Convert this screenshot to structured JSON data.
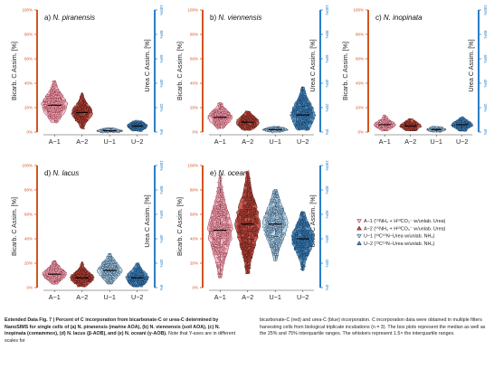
{
  "colors": {
    "bicarb_axis": "#d2541f",
    "urea_axis": "#2a7fc6",
    "A1_fill": "#f5b8c4",
    "A1_stroke": "#8e2a3c",
    "A2_fill": "#c7453a",
    "A2_stroke": "#3d1410",
    "U1_fill": "#b9d6ea",
    "U1_stroke": "#1f3f5c",
    "U2_fill": "#3f86c2",
    "U2_stroke": "#13314f"
  },
  "legend": {
    "items": [
      {
        "key": "A1",
        "symbol": "▽",
        "label": "A−1 (¹⁵NH₄ + H¹³CO₃⁻ w/unlab. Urea)"
      },
      {
        "key": "A2",
        "symbol": "▲",
        "label": "A−2 (¹⁵NH₄ + H¹³CO₃⁻ w/unlab. Urea)"
      },
      {
        "key": "U1",
        "symbol": "▽",
        "label": "U−1 (¹³C¹⁵N−Urea w/unlab. NH₄)"
      },
      {
        "key": "U2",
        "symbol": "▲",
        "label": "U−2 (¹³C¹⁵N−Urea w/unlab. NH₄)"
      }
    ]
  },
  "caption": {
    "lead": "Extended Data Fig. 7 | Percent of C incorporation from bicarbonate-C or urea-C determined by NanoSIMS for single cells of (a) N. piranensis (marine AOA), (b) N. viennensis (soil AOA), (c) N. inopinata (comammox), (d) N. lacus (β-AOB), and (e) N. oceani (γ-AOB).",
    "rest": " Note that Y-axes are in different scales for",
    "right": "bicarbonate-C (red) and urea-C (blue) incorporation. C incorporation data were obtained in multiple filters harvesting cells from biological triplicate incubations (n = 3). The box plots represent the median as well as the 25% and 75% interquartile ranges. The whiskers represent 1.5× the interquartile ranges."
  },
  "chart_data": [
    {
      "type": "violin",
      "panel": "a",
      "title": "a) N. piranensis",
      "categories": [
        "A−1",
        "A−2",
        "U−1",
        "U−2"
      ],
      "ylabel_left": "Bicarb. C Assim. [%]",
      "ylabel_right": "Urea C Assim. [%]",
      "yticks_left": [
        "0%",
        "20%",
        "40%",
        "60%",
        "80%",
        "100%"
      ],
      "ylim_left": [
        0,
        100
      ],
      "yticks_right": [
        "0%",
        "20%",
        "40%",
        "60%",
        "80%",
        "100%"
      ],
      "ylim_right": [
        0,
        100
      ],
      "series": [
        {
          "key": "A1",
          "axis": "left",
          "median": 22,
          "q1": 17,
          "q3": 28,
          "min": 8,
          "max": 42,
          "width": 0.95,
          "n": 260
        },
        {
          "key": "A2",
          "axis": "left",
          "median": 16,
          "q1": 12,
          "q3": 20,
          "min": 3,
          "max": 32,
          "width": 0.8,
          "n": 170
        },
        {
          "key": "U1",
          "axis": "right",
          "median": 1,
          "q1": 0.5,
          "q3": 2,
          "min": 0,
          "max": 3,
          "width": 0.95,
          "n": 80
        },
        {
          "key": "U2",
          "axis": "right",
          "median": 5,
          "q1": 3,
          "q3": 7,
          "min": 1,
          "max": 9,
          "width": 0.75,
          "n": 110
        }
      ]
    },
    {
      "type": "violin",
      "panel": "b",
      "title": "b) N. viennensis",
      "categories": [
        "A−1",
        "A−2",
        "U−1",
        "U−2"
      ],
      "ylabel_left": "Bicarb. C Assim. [%]",
      "ylabel_right": "Urea C Assim. [%]",
      "yticks_left": [
        "0%",
        "20%",
        "40%",
        "60%",
        "80%",
        "100%"
      ],
      "ylim_left": [
        0,
        100
      ],
      "yticks_right": [
        "0%",
        "20%",
        "40%",
        "60%",
        "80%",
        "100%"
      ],
      "ylim_right": [
        0,
        100
      ],
      "series": [
        {
          "key": "A1",
          "axis": "left",
          "median": 12,
          "q1": 9,
          "q3": 16,
          "min": 3,
          "max": 24,
          "width": 0.9,
          "n": 170
        },
        {
          "key": "A2",
          "axis": "left",
          "median": 8,
          "q1": 5,
          "q3": 11,
          "min": 2,
          "max": 17,
          "width": 0.85,
          "n": 140
        },
        {
          "key": "U1",
          "axis": "right",
          "median": 2,
          "q1": 1,
          "q3": 3,
          "min": 0,
          "max": 4,
          "width": 0.9,
          "n": 70
        },
        {
          "key": "U2",
          "axis": "right",
          "median": 14,
          "q1": 8,
          "q3": 21,
          "min": 2,
          "max": 37,
          "width": 0.9,
          "n": 220
        }
      ]
    },
    {
      "type": "violin",
      "panel": "c",
      "title": "c) N. inopinata",
      "categories": [
        "A−1",
        "A−2",
        "U−1",
        "U−2"
      ],
      "ylabel_left": "Bicarb. C Assim. [%]",
      "ylabel_right": "Urea C Assim. [%]",
      "yticks_left": [
        "0%",
        "20%",
        "40%",
        "60%",
        "80%",
        "100%"
      ],
      "ylim_left": [
        0,
        100
      ],
      "yticks_right": [
        "0%",
        "20%",
        "40%",
        "60%",
        "80%",
        "100%"
      ],
      "ylim_right": [
        0,
        100
      ],
      "series": [
        {
          "key": "A1",
          "axis": "left",
          "median": 6,
          "q1": 4,
          "q3": 8,
          "min": 1,
          "max": 14,
          "width": 0.85,
          "n": 90
        },
        {
          "key": "A2",
          "axis": "left",
          "median": 5,
          "q1": 3,
          "q3": 7,
          "min": 1,
          "max": 11,
          "width": 0.85,
          "n": 80
        },
        {
          "key": "U1",
          "axis": "right",
          "median": 2,
          "q1": 1,
          "q3": 3,
          "min": 0,
          "max": 4,
          "width": 0.75,
          "n": 40
        },
        {
          "key": "U2",
          "axis": "right",
          "median": 6,
          "q1": 4,
          "q3": 8,
          "min": 1,
          "max": 12,
          "width": 0.85,
          "n": 90
        }
      ]
    },
    {
      "type": "violin",
      "panel": "d",
      "title": "d) N. lacus",
      "categories": [
        "A−1",
        "A−2",
        "U−1",
        "U−2"
      ],
      "ylabel_left": "Bicarb. C Assim. [%]",
      "ylabel_right": "Urea C Assim. [%]",
      "yticks_left": [
        "0%",
        "20%",
        "40%",
        "60%",
        "80%",
        "100%"
      ],
      "ylim_left": [
        0,
        100
      ],
      "yticks_right": [
        "0%",
        "20%",
        "40%",
        "60%",
        "80%",
        "100%"
      ],
      "ylim_right": [
        0,
        100
      ],
      "series": [
        {
          "key": "A1",
          "axis": "left",
          "median": 11,
          "q1": 8,
          "q3": 14,
          "min": 3,
          "max": 22,
          "width": 0.9,
          "n": 170
        },
        {
          "key": "A2",
          "axis": "left",
          "median": 8,
          "q1": 5,
          "q3": 11,
          "min": 1,
          "max": 21,
          "width": 0.9,
          "n": 160
        },
        {
          "key": "U1",
          "axis": "right",
          "median": 14,
          "q1": 10,
          "q3": 18,
          "min": 3,
          "max": 28,
          "width": 0.9,
          "n": 190
        },
        {
          "key": "U2",
          "axis": "right",
          "median": 8,
          "q1": 5,
          "q3": 12,
          "min": 1,
          "max": 20,
          "width": 0.85,
          "n": 150
        }
      ]
    },
    {
      "type": "violin",
      "panel": "e",
      "title": "e) N. oceani",
      "categories": [
        "A−1",
        "A−2",
        "U−1",
        "U−2"
      ],
      "ylabel_left": "Bicarb. C Assim. [%]",
      "ylabel_right": "Urea C Assim. [%]",
      "yticks_left": [
        "0%",
        "20%",
        "40%",
        "60%",
        "80%",
        "100%"
      ],
      "ylim_left": [
        0,
        100
      ],
      "yticks_right": [
        "0%",
        "20%",
        "40%",
        "60%",
        "80%",
        "100%"
      ],
      "ylim_right": [
        0,
        100
      ],
      "series": [
        {
          "key": "A1",
          "axis": "left",
          "median": 47,
          "q1": 35,
          "q3": 58,
          "min": 8,
          "max": 92,
          "width": 0.9,
          "n": 420
        },
        {
          "key": "A2",
          "axis": "left",
          "median": 52,
          "q1": 40,
          "q3": 64,
          "min": 12,
          "max": 95,
          "width": 0.9,
          "n": 420
        },
        {
          "key": "U1",
          "axis": "right",
          "median": 52,
          "q1": 42,
          "q3": 60,
          "min": 22,
          "max": 80,
          "width": 0.9,
          "n": 360
        },
        {
          "key": "U2",
          "axis": "right",
          "median": 40,
          "q1": 33,
          "q3": 47,
          "min": 14,
          "max": 62,
          "width": 0.85,
          "n": 280
        }
      ]
    }
  ]
}
